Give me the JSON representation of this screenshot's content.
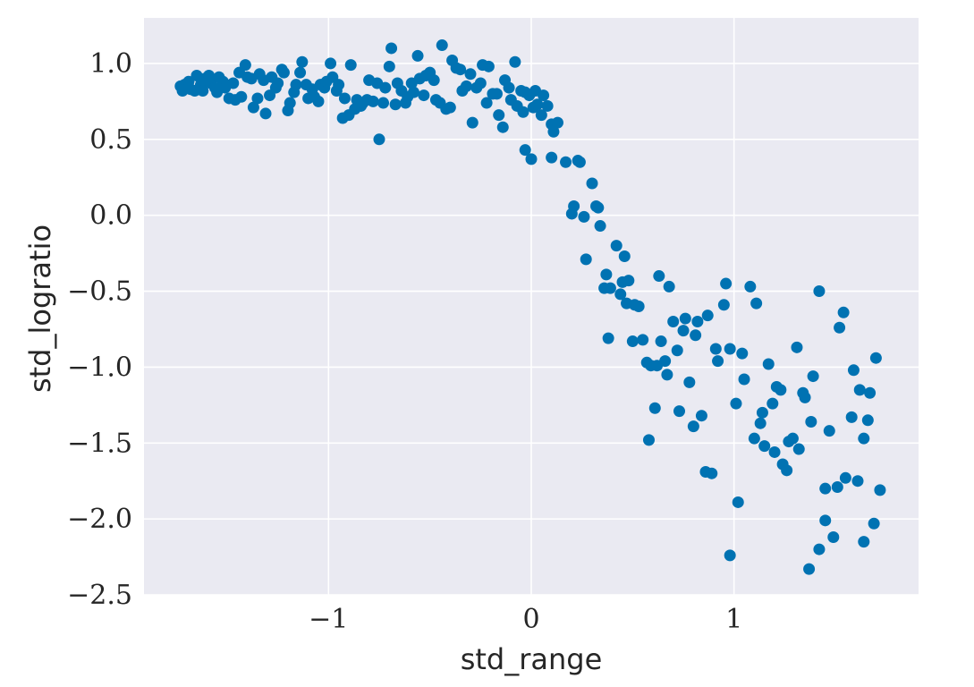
{
  "chart_data": {
    "type": "scatter",
    "title": "",
    "xlabel": "std_range",
    "ylabel": "std_logratio",
    "xlim": [
      -1.91,
      1.91
    ],
    "ylim": [
      -2.5,
      1.3
    ],
    "xticks": [
      -1,
      0,
      1
    ],
    "xtick_labels": [
      "−1",
      "0",
      "1"
    ],
    "yticks": [
      1.0,
      0.5,
      0.0,
      -0.5,
      -1.0,
      -1.5,
      -2.0,
      -2.5
    ],
    "ytick_labels": [
      "1.0",
      "0.5",
      "0.0",
      "−0.5",
      "−1.0",
      "−1.5",
      "−2.0",
      "−2.5"
    ],
    "grid": true,
    "style": {
      "background": "#eaeaf2",
      "grid_color": "#ffffff",
      "point_color": "#0072b2",
      "text_color": "#262626"
    },
    "points": [
      [
        -1.73,
        0.85
      ],
      [
        -1.72,
        0.82
      ],
      [
        -1.71,
        0.86
      ],
      [
        -1.69,
        0.88
      ],
      [
        -1.68,
        0.83
      ],
      [
        -1.66,
        0.82
      ],
      [
        -1.65,
        0.92
      ],
      [
        -1.63,
        0.86
      ],
      [
        -1.62,
        0.82
      ],
      [
        -1.61,
        0.9
      ],
      [
        -1.59,
        0.92
      ],
      [
        -1.58,
        0.87
      ],
      [
        -1.56,
        0.84
      ],
      [
        -1.55,
        0.81
      ],
      [
        -1.54,
        0.91
      ],
      [
        -1.52,
        0.88
      ],
      [
        -1.51,
        0.84
      ],
      [
        -1.49,
        0.77
      ],
      [
        -1.47,
        0.87
      ],
      [
        -1.46,
        0.76
      ],
      [
        -1.44,
        0.94
      ],
      [
        -1.43,
        0.78
      ],
      [
        -1.41,
        0.99
      ],
      [
        -1.4,
        0.91
      ],
      [
        -1.38,
        0.9
      ],
      [
        -1.37,
        0.71
      ],
      [
        -1.35,
        0.77
      ],
      [
        -1.34,
        0.93
      ],
      [
        -1.32,
        0.89
      ],
      [
        -1.31,
        0.67
      ],
      [
        -1.29,
        0.79
      ],
      [
        -1.28,
        0.91
      ],
      [
        -1.26,
        0.84
      ],
      [
        -1.25,
        0.87
      ],
      [
        -1.23,
        0.96
      ],
      [
        -1.22,
        0.94
      ],
      [
        -1.2,
        0.69
      ],
      [
        -1.19,
        0.74
      ],
      [
        -1.17,
        0.81
      ],
      [
        -1.16,
        0.86
      ],
      [
        -1.14,
        0.94
      ],
      [
        -1.13,
        1.01
      ],
      [
        -1.11,
        0.86
      ],
      [
        -1.1,
        0.77
      ],
      [
        -1.08,
        0.83
      ],
      [
        -1.07,
        0.78
      ],
      [
        -1.05,
        0.75
      ],
      [
        -1.04,
        0.86
      ],
      [
        -1.02,
        0.84
      ],
      [
        -1.01,
        0.88
      ],
      [
        -0.99,
        1.0
      ],
      [
        -0.98,
        0.91
      ],
      [
        -0.96,
        0.82
      ],
      [
        -0.95,
        0.86
      ],
      [
        -0.93,
        0.64
      ],
      [
        -0.92,
        0.77
      ],
      [
        -0.9,
        0.66
      ],
      [
        -0.89,
        0.99
      ],
      [
        -0.87,
        0.7
      ],
      [
        -0.86,
        0.76
      ],
      [
        -0.84,
        0.72
      ],
      [
        -0.83,
        0.74
      ],
      [
        -0.81,
        0.76
      ],
      [
        -0.8,
        0.89
      ],
      [
        -0.78,
        0.75
      ],
      [
        -0.76,
        0.87
      ],
      [
        -0.75,
        0.5
      ],
      [
        -0.73,
        0.74
      ],
      [
        -0.72,
        0.84
      ],
      [
        -0.7,
        0.98
      ],
      [
        -0.69,
        1.1
      ],
      [
        -0.67,
        0.73
      ],
      [
        -0.66,
        0.87
      ],
      [
        -0.64,
        0.82
      ],
      [
        -0.62,
        0.74
      ],
      [
        -0.61,
        0.78
      ],
      [
        -0.59,
        0.87
      ],
      [
        -0.58,
        0.81
      ],
      [
        -0.56,
        1.05
      ],
      [
        -0.55,
        0.9
      ],
      [
        -0.53,
        0.79
      ],
      [
        -0.52,
        0.92
      ],
      [
        -0.5,
        0.94
      ],
      [
        -0.48,
        0.89
      ],
      [
        -0.47,
        0.76
      ],
      [
        -0.45,
        0.74
      ],
      [
        -0.44,
        1.12
      ],
      [
        -0.42,
        0.7
      ],
      [
        -0.4,
        0.71
      ],
      [
        -0.39,
        1.02
      ],
      [
        -0.37,
        0.97
      ],
      [
        -0.35,
        0.96
      ],
      [
        -0.34,
        0.82
      ],
      [
        -0.32,
        0.85
      ],
      [
        -0.3,
        0.93
      ],
      [
        -0.29,
        0.61
      ],
      [
        -0.27,
        0.84
      ],
      [
        -0.25,
        0.87
      ],
      [
        -0.24,
        0.99
      ],
      [
        -0.22,
        0.74
      ],
      [
        -0.21,
        0.98
      ],
      [
        -0.19,
        0.8
      ],
      [
        -0.17,
        0.8
      ],
      [
        -0.16,
        0.66
      ],
      [
        -0.14,
        0.58
      ],
      [
        -0.13,
        0.89
      ],
      [
        -0.11,
        0.84
      ],
      [
        -0.1,
        0.76
      ],
      [
        -0.08,
        1.01
      ],
      [
        -0.07,
        0.72
      ],
      [
        -0.05,
        0.82
      ],
      [
        -0.04,
        0.68
      ],
      [
        -0.03,
        0.81
      ],
      [
        -0.01,
        0.79
      ],
      [
        0.01,
        0.71
      ],
      [
        0.02,
        0.82
      ],
      [
        0.03,
        0.73
      ],
      [
        0.05,
        0.66
      ],
      [
        0.06,
        0.79
      ],
      [
        0.08,
        0.72
      ],
      [
        0.1,
        0.6
      ],
      [
        0.11,
        0.55
      ],
      [
        0.13,
        0.61
      ],
      [
        -0.03,
        0.43
      ],
      [
        0.0,
        0.37
      ],
      [
        0.1,
        0.38
      ],
      [
        0.17,
        0.35
      ],
      [
        0.23,
        0.36
      ],
      [
        0.24,
        0.35
      ],
      [
        0.3,
        0.21
      ],
      [
        0.32,
        0.06
      ],
      [
        0.33,
        0.05
      ],
      [
        0.2,
        0.01
      ],
      [
        0.21,
        0.06
      ],
      [
        0.26,
        -0.01
      ],
      [
        0.34,
        -0.07
      ],
      [
        0.27,
        -0.29
      ],
      [
        0.37,
        -0.39
      ],
      [
        0.42,
        -0.2
      ],
      [
        0.45,
        -0.44
      ],
      [
        0.46,
        -0.27
      ],
      [
        0.48,
        -0.43
      ],
      [
        0.36,
        -0.48
      ],
      [
        0.39,
        -0.48
      ],
      [
        0.44,
        -0.52
      ],
      [
        0.47,
        -0.58
      ],
      [
        0.51,
        -0.59
      ],
      [
        0.53,
        -0.6
      ],
      [
        0.38,
        -0.81
      ],
      [
        0.5,
        -0.83
      ],
      [
        0.55,
        -0.82
      ],
      [
        0.57,
        -0.97
      ],
      [
        0.59,
        -0.99
      ],
      [
        0.62,
        -0.99
      ],
      [
        0.63,
        -0.4
      ],
      [
        0.68,
        -0.47
      ],
      [
        0.64,
        -0.83
      ],
      [
        0.66,
        -0.96
      ],
      [
        0.67,
        -1.05
      ],
      [
        0.7,
        -0.7
      ],
      [
        0.72,
        -0.89
      ],
      [
        0.75,
        -0.76
      ],
      [
        0.76,
        -0.68
      ],
      [
        0.78,
        -1.1
      ],
      [
        0.81,
        -0.79
      ],
      [
        0.82,
        -0.7
      ],
      [
        0.87,
        -0.66
      ],
      [
        0.91,
        -0.88
      ],
      [
        0.92,
        -0.96
      ],
      [
        0.95,
        -0.59
      ],
      [
        0.96,
        -0.45
      ],
      [
        0.98,
        -0.88
      ],
      [
        1.01,
        -1.24
      ],
      [
        1.04,
        -0.91
      ],
      [
        1.05,
        -1.08
      ],
      [
        1.08,
        -0.47
      ],
      [
        1.1,
        -1.47
      ],
      [
        1.11,
        -0.58
      ],
      [
        1.13,
        -1.37
      ],
      [
        1.14,
        -1.3
      ],
      [
        1.15,
        -1.52
      ],
      [
        1.17,
        -0.98
      ],
      [
        1.19,
        -1.24
      ],
      [
        1.2,
        -1.56
      ],
      [
        1.21,
        -1.13
      ],
      [
        1.23,
        -1.15
      ],
      [
        1.24,
        -1.64
      ],
      [
        1.26,
        -1.68
      ],
      [
        1.27,
        -1.49
      ],
      [
        1.29,
        -1.47
      ],
      [
        1.31,
        -0.87
      ],
      [
        1.32,
        -1.54
      ],
      [
        1.34,
        -1.17
      ],
      [
        1.35,
        -1.2
      ],
      [
        1.38,
        -1.36
      ],
      [
        1.39,
        -1.06
      ],
      [
        1.42,
        -0.5
      ],
      [
        1.45,
        -1.8
      ],
      [
        1.47,
        -1.42
      ],
      [
        1.51,
        -1.79
      ],
      [
        1.52,
        -0.74
      ],
      [
        1.54,
        -0.64
      ],
      [
        1.55,
        -1.73
      ],
      [
        1.58,
        -1.33
      ],
      [
        1.59,
        -1.02
      ],
      [
        1.61,
        -1.75
      ],
      [
        1.62,
        -1.15
      ],
      [
        1.64,
        -1.47
      ],
      [
        1.66,
        -1.35
      ],
      [
        1.67,
        -1.17
      ],
      [
        1.7,
        -0.94
      ],
      [
        1.72,
        -1.81
      ],
      [
        1.69,
        -2.03
      ],
      [
        1.64,
        -2.15
      ],
      [
        1.49,
        -2.12
      ],
      [
        1.45,
        -2.01
      ],
      [
        1.42,
        -2.2
      ],
      [
        1.37,
        -2.33
      ],
      [
        0.98,
        -2.24
      ],
      [
        1.02,
        -1.89
      ],
      [
        0.58,
        -1.48
      ],
      [
        0.61,
        -1.27
      ],
      [
        0.73,
        -1.29
      ],
      [
        0.8,
        -1.39
      ],
      [
        0.84,
        -1.32
      ],
      [
        0.86,
        -1.69
      ],
      [
        0.89,
        -1.7
      ]
    ]
  }
}
